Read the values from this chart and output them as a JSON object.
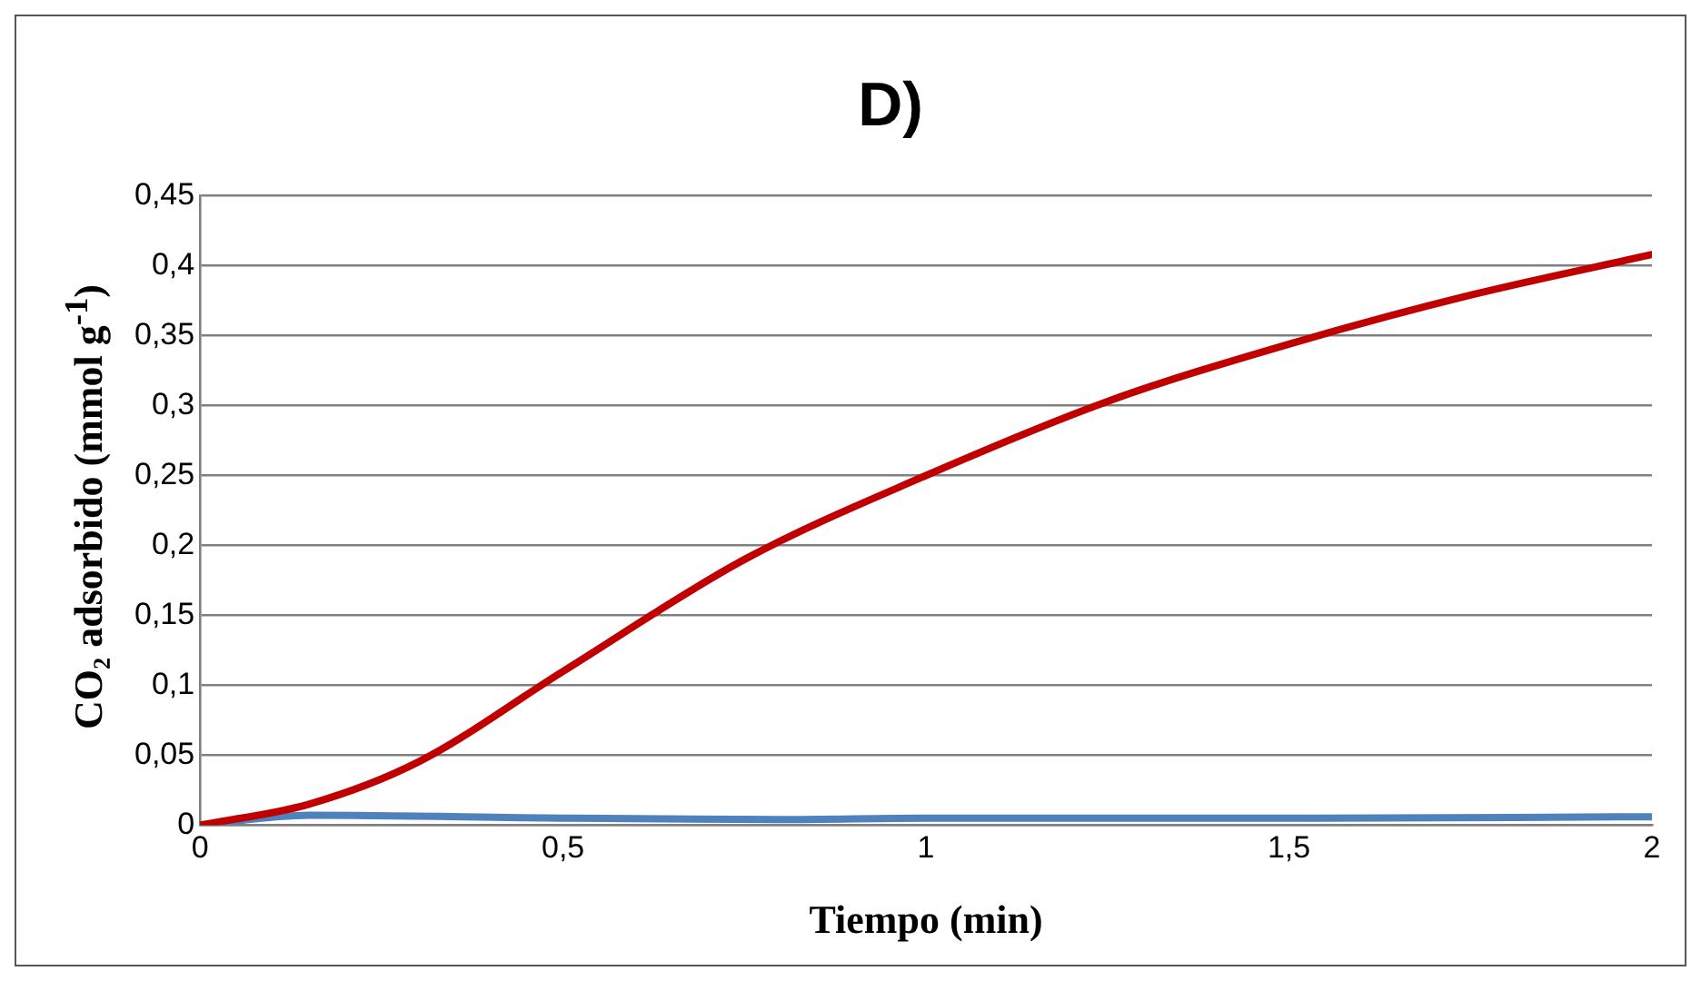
{
  "chart_data": {
    "type": "line",
    "title": "D)",
    "xlabel": "Tiempo (min)",
    "ylabel": "CO₂ adsorbido (mmol g$^{-1}$)",
    "xlim": [
      0,
      2
    ],
    "xticks": [
      0,
      {
        "value": 0.5,
        "label": "0,5"
      },
      1,
      {
        "value": 1.5,
        "label": "1,5"
      },
      2
    ],
    "ylim": [
      0,
      0.45
    ],
    "yticks": [
      0,
      {
        "value": 0.05,
        "label": "0,05"
      },
      {
        "value": 0.1,
        "label": "0,1"
      },
      {
        "value": 0.15,
        "label": "0,15"
      },
      {
        "value": 0.2,
        "label": "0,2"
      },
      {
        "value": 0.25,
        "label": "0,25"
      },
      {
        "value": 0.3,
        "label": "0,3"
      },
      {
        "value": 0.35,
        "label": "0,35"
      },
      {
        "value": 0.4,
        "label": "0,4"
      },
      {
        "value": 0.45,
        "label": "0,45"
      }
    ],
    "grid": "y",
    "legend": false,
    "marker": "none",
    "line_style": "solid",
    "series": [
      {
        "color": "#c00000",
        "x": [
          0,
          0.15,
          0.3,
          0.5,
          0.75,
          1,
          1.25,
          1.5,
          1.75,
          2
        ],
        "values": [
          0,
          0.015,
          0.045,
          0.11,
          0.19,
          0.25,
          0.303,
          0.344,
          0.379,
          0.408
        ]
      },
      {
        "color": "#4f81bd",
        "x": [
          0,
          0.15,
          0.5,
          0.8,
          1,
          1.5,
          2
        ],
        "values": [
          0,
          0.007,
          0.005,
          0.004,
          0.005,
          0.005,
          0.006
        ]
      }
    ]
  }
}
